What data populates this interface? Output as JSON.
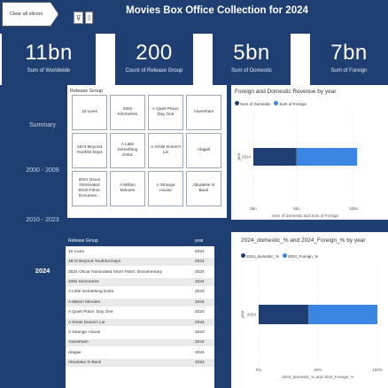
{
  "header": {
    "clear_label": "Clear all slicers",
    "title": "Movies Box Office Collection for 2024"
  },
  "kpis": [
    {
      "value": "11bn",
      "label": "Sum of Worldwide"
    },
    {
      "value": "200",
      "label": "Count of Release Group"
    },
    {
      "value": "5bn",
      "label": "Sum of Domestic"
    },
    {
      "value": "7bn",
      "label": "Sum of Foreign"
    }
  ],
  "slicer": {
    "items": [
      "Summary",
      "2000 - 2009",
      "2010 - 2023",
      "2024"
    ]
  },
  "tiles": {
    "header": "Release Group",
    "items": [
      "10 Lives",
      "3391 Kilometres",
      "A Quiet Place: Day One",
      "Aavesham",
      "18×2 Beyond Youthful Days",
      "A Little Something Extra",
      "A Smile Doesn't Lie",
      "Abigail",
      "2024 Oscar Nominated Short Films: Documen...",
      "A Million Minutes",
      "A Strange House",
      "Abudekie Is Back"
    ]
  },
  "table": {
    "columns": [
      "Release Group",
      "year"
    ],
    "rows": [
      [
        "10 Lives",
        "2024"
      ],
      [
        "18×2 Beyond Youthful Days",
        "2024"
      ],
      [
        "2024 Oscar Nominated Short Films: Documentary",
        "2024"
      ],
      [
        "3391 Kilometres",
        "2024"
      ],
      [
        "A Little Something Extra",
        "2024"
      ],
      [
        "A Million Minutes",
        "2024"
      ],
      [
        "A Quiet Place: Day One",
        "2024"
      ],
      [
        "A Smile Doesn't Lie",
        "2024"
      ],
      [
        "A Strange House",
        "2024"
      ],
      [
        "Aavesham",
        "2024"
      ],
      [
        "Abigail",
        "2024"
      ],
      [
        "Abudekie Is Back",
        "2024"
      ]
    ]
  },
  "chart_data": [
    {
      "type": "bar",
      "title": "Foreign and Domestic Revenue by year",
      "orientation": "horizontal",
      "stacked": true,
      "categories": [
        "2024"
      ],
      "series": [
        {
          "name": "Sum of Domestic",
          "values": [
            5
          ],
          "color": "#1f3f73"
        },
        {
          "name": "Sum of Foreign",
          "values": [
            7
          ],
          "color": "#3a86e0"
        }
      ],
      "xticks": [
        "0bn",
        "5bn",
        "10bn"
      ],
      "xlim": [
        0,
        12
      ],
      "xlabel": "Sum of Domestic and Sum of Foreign",
      "ylabel": "year",
      "legend": "top-left"
    },
    {
      "type": "bar",
      "title": "2024_domestic_% and 2024_Foreign_% by year",
      "orientation": "horizontal",
      "stacked": true,
      "categories": [
        "2024"
      ],
      "series": [
        {
          "name": "2024_domestic_%",
          "values": [
            42
          ],
          "color": "#1f3f73"
        },
        {
          "name": "2024_Foreign_%",
          "values": [
            58
          ],
          "color": "#3a86e0"
        }
      ],
      "xticks": [
        "0%",
        "50%",
        "100%"
      ],
      "xlim": [
        0,
        100
      ],
      "xlabel": "2024_domestic_% and 2024_Foreign_%",
      "ylabel": "year",
      "legend": "top-left"
    }
  ]
}
